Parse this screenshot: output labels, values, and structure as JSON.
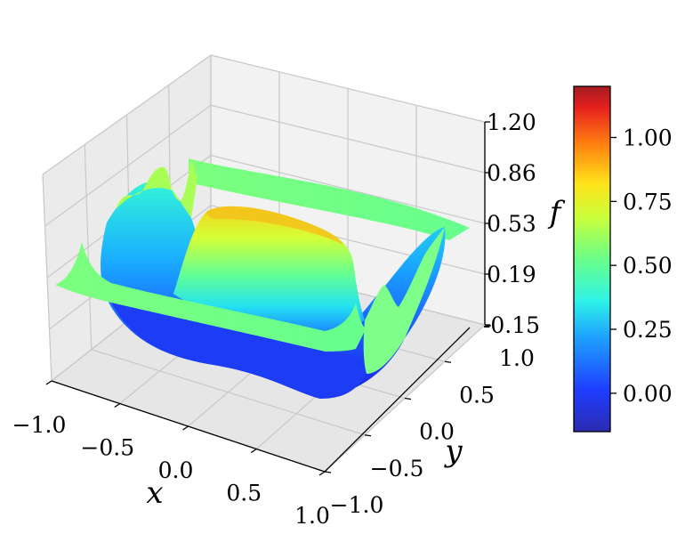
{
  "chart_data": {
    "type": "surface3d",
    "title": "",
    "xlabel": "x",
    "ylabel": "y",
    "zlabel": "f",
    "xlim": [
      -1.0,
      1.0
    ],
    "ylim": [
      -1.0,
      1.0
    ],
    "zlim": [
      -0.15,
      1.2
    ],
    "x_ticks": [
      "−1.0",
      "−0.5",
      "0.0",
      "0.5",
      "1.0"
    ],
    "y_ticks": [
      "−1.0",
      "−0.5",
      "0.0",
      "0.5",
      "1.0"
    ],
    "z_ticks": [
      "-0.15",
      "0.19",
      "0.53",
      "0.86",
      "1.20"
    ],
    "colorbar": {
      "range": [
        -0.15,
        1.2
      ],
      "ticks": [
        "0.00",
        "0.25",
        "0.50",
        "0.75",
        "1.00"
      ],
      "colormap": "jet"
    },
    "surface": {
      "description_levels": {
        "flat_plateau": 0.55,
        "central_ridge_peak": 0.72,
        "trough_min": -0.12
      }
    }
  }
}
